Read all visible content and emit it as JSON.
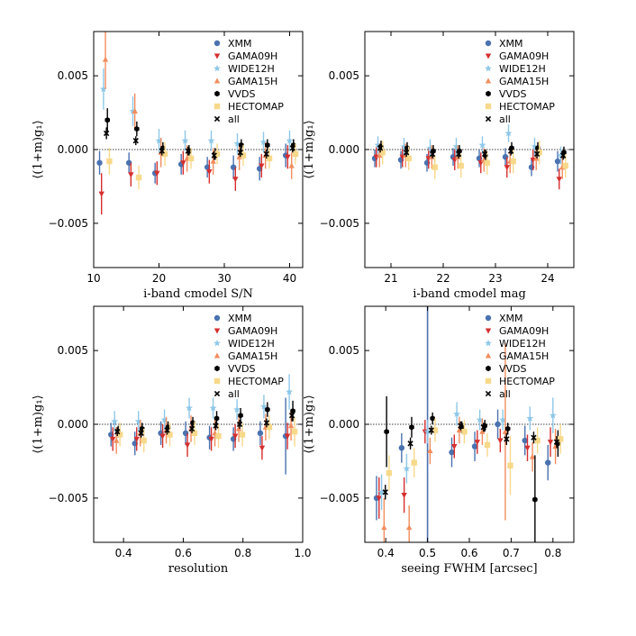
{
  "figure": {
    "title": "",
    "y_label_text": "⟨(1+m)g₁⟩"
  },
  "legend": {
    "entries": [
      {
        "key": "XMM",
        "label": "XMM",
        "color": "#4a72b0",
        "marker": "circle"
      },
      {
        "key": "GAMA09H",
        "label": "GAMA09H",
        "color": "#d62e2e",
        "marker": "triangle-down"
      },
      {
        "key": "WIDE12H",
        "label": "WIDE12H",
        "color": "#8ec7e8",
        "marker": "star"
      },
      {
        "key": "GAMA15H",
        "label": "GAMA15H",
        "color": "#f28d5e",
        "marker": "triangle-up"
      },
      {
        "key": "VVDS",
        "label": "VVDS",
        "color": "#000000",
        "marker": "hexagon"
      },
      {
        "key": "HECTOMAP",
        "label": "HECTOMAP",
        "color": "#f7d98b",
        "marker": "square"
      },
      {
        "key": "all",
        "label": "all",
        "color": "#000000",
        "marker": "x"
      }
    ]
  },
  "chart_data": [
    {
      "type": "scatter",
      "title": "",
      "xlabel": "i-band cmodel S/N",
      "ylabel": "⟨(1+m)g₁⟩",
      "xlim": [
        10,
        42
      ],
      "ylim": [
        -0.008,
        0.008
      ],
      "xticks": [
        10,
        20,
        30,
        40
      ],
      "xtick_labels": [
        "10",
        "20",
        "30",
        "40"
      ],
      "yticks": [
        -0.005,
        0.0,
        0.005
      ],
      "ytick_labels": [
        "−0.005",
        "0.000",
        "0.005"
      ],
      "zero_line": true,
      "x": [
        11.5,
        16,
        20,
        24,
        28,
        32,
        36,
        40
      ],
      "offsets": [
        -0.6,
        -0.3,
        0.0,
        0.3,
        0.6,
        0.9,
        0.45
      ],
      "series": [
        {
          "name": "XMM",
          "values": [
            -0.0009,
            -0.0009,
            -0.0016,
            -0.001,
            -0.0012,
            -0.0012,
            -0.0013,
            -0.0004
          ],
          "errors": [
            0.0008,
            0.0007,
            0.0007,
            0.0007,
            0.0007,
            0.0008,
            0.0008,
            0.0008
          ]
        },
        {
          "name": "GAMA09H",
          "values": [
            -0.003,
            -0.0017,
            -0.0016,
            -0.0009,
            -0.0015,
            -0.002,
            -0.0011,
            -0.0005
          ],
          "errors": [
            0.0014,
            0.0008,
            0.0008,
            0.0008,
            0.0008,
            0.0008,
            0.0008,
            0.0008
          ]
        },
        {
          "name": "WIDE12H",
          "values": [
            0.0041,
            0.0026,
            0.0006,
            0.0006,
            0.0006,
            0.0004,
            0.0005,
            0.0006
          ],
          "errors": [
            0.0014,
            0.001,
            0.0008,
            0.0007,
            0.0007,
            0.0007,
            0.0007,
            0.0007
          ]
        },
        {
          "name": "GAMA15H",
          "values": [
            0.0061,
            0.0026,
            -0.0002,
            -0.0006,
            -0.0008,
            -0.0005,
            -0.0004,
            -0.0011
          ],
          "errors": [
            0.002,
            0.0012,
            0.001,
            0.0009,
            0.0009,
            0.0009,
            0.0009,
            0.0009
          ]
        },
        {
          "name": "VVDS",
          "values": [
            0.002,
            0.0014,
            0.0001,
            -0.0001,
            -0.0003,
            0.0003,
            0.0003,
            0.0003
          ],
          "errors": [
            0.0008,
            0.0005,
            0.0004,
            0.0004,
            0.0004,
            0.0004,
            0.0004,
            0.0004
          ]
        },
        {
          "name": "HECTOMAP",
          "values": [
            -0.0008,
            -0.0019,
            -0.0003,
            -0.0006,
            -0.0003,
            -0.0004,
            -0.0006,
            -0.0003
          ],
          "errors": [
            0.0009,
            0.0008,
            0.0008,
            0.0007,
            0.0007,
            0.0007,
            0.0007,
            0.0007
          ]
        },
        {
          "name": "all",
          "values": [
            0.0011,
            0.0006,
            -0.0001,
            -0.0001,
            -0.0004,
            -0.0002,
            -0.0003,
            0.0001
          ],
          "errors": [
            0.0004,
            0.0003,
            0.0003,
            0.0003,
            0.0003,
            0.0003,
            0.0003,
            0.0003
          ]
        }
      ]
    },
    {
      "type": "scatter",
      "title": "",
      "xlabel": "i-band cmodel mag",
      "ylabel": "⟨(1+m)g₁⟩",
      "xlim": [
        20.5,
        24.5
      ],
      "ylim": [
        -0.008,
        0.008
      ],
      "xticks": [
        21,
        22,
        23,
        24
      ],
      "xtick_labels": [
        "21",
        "22",
        "23",
        "24"
      ],
      "yticks": [
        -0.005,
        0.0,
        0.005
      ],
      "ytick_labels": [
        "−0.005",
        "0.000",
        "0.005"
      ],
      "zero_line": true,
      "x": [
        20.75,
        21.25,
        21.75,
        22.25,
        22.75,
        23.25,
        23.75,
        24.25
      ],
      "offsets": [
        -0.06,
        -0.03,
        0.0,
        0.03,
        0.06,
        0.09,
        0.045
      ],
      "series": [
        {
          "name": "XMM",
          "values": [
            -0.0006,
            -0.0007,
            -0.0009,
            -0.0005,
            -0.0006,
            -0.0005,
            -0.0012,
            -0.0008
          ],
          "errors": [
            0.0006,
            0.0006,
            0.0006,
            0.0006,
            0.0006,
            0.0006,
            0.0006,
            0.0007
          ]
        },
        {
          "name": "GAMA09H",
          "values": [
            -0.0005,
            -0.0005,
            -0.0006,
            -0.0007,
            -0.0009,
            -0.0012,
            -0.0007,
            -0.002
          ],
          "errors": [
            0.0007,
            0.0007,
            0.0007,
            0.0007,
            0.0007,
            0.0007,
            0.0007,
            0.0007
          ]
        },
        {
          "name": "WIDE12H",
          "values": [
            0.0003,
            0.0002,
            0.0001,
            0.0002,
            0.0003,
            0.0011,
            0.0002,
            -0.0004
          ],
          "errors": [
            0.0006,
            0.0006,
            0.0006,
            0.0006,
            0.0006,
            0.0006,
            0.0006,
            0.0006
          ]
        },
        {
          "name": "GAMA15H",
          "values": [
            -0.0004,
            -0.0004,
            -0.0005,
            -0.0005,
            -0.0007,
            -0.0008,
            -0.0006,
            -0.0012
          ],
          "errors": [
            0.0008,
            0.0008,
            0.0008,
            0.0008,
            0.0008,
            0.0008,
            0.0008,
            0.0008
          ]
        },
        {
          "name": "VVDS",
          "values": [
            0.0002,
            0.0001,
            -0.0001,
            -0.0001,
            -0.0004,
            0.0001,
            0.0001,
            -0.0002
          ],
          "errors": [
            0.0004,
            0.0004,
            0.0004,
            0.0004,
            0.0004,
            0.0004,
            0.0004,
            0.0004
          ]
        },
        {
          "name": "HECTOMAP",
          "values": [
            -0.0002,
            -0.0006,
            -0.0012,
            -0.0011,
            -0.0009,
            -0.0008,
            -0.0002,
            -0.0011
          ],
          "errors": [
            0.0008,
            0.0008,
            0.0008,
            0.0008,
            0.0008,
            0.0008,
            0.0008,
            0.0008
          ]
        },
        {
          "name": "all",
          "values": [
            0.0001,
            -0.0002,
            -0.0003,
            -0.0003,
            -0.0003,
            -0.0001,
            -0.0003,
            -0.0004
          ],
          "errors": [
            0.0003,
            0.0003,
            0.0003,
            0.0003,
            0.0003,
            0.0003,
            0.0003,
            0.0003
          ]
        }
      ]
    },
    {
      "type": "scatter",
      "title": "",
      "xlabel": "resolution",
      "ylabel": "⟨(1+m)g₁⟩",
      "xlim": [
        0.3,
        1.0
      ],
      "ylim": [
        -0.008,
        0.008
      ],
      "xticks": [
        0.4,
        0.6,
        0.8,
        1.0
      ],
      "xtick_labels": [
        "0.4",
        "0.6",
        "0.8",
        "1.0"
      ],
      "yticks": [
        -0.005,
        0.0,
        0.005
      ],
      "ytick_labels": [
        "−0.005",
        "0.000",
        "0.005"
      ],
      "zero_line": true,
      "x": [
        0.37,
        0.45,
        0.537,
        0.62,
        0.7,
        0.78,
        0.87,
        0.955
      ],
      "offsets": [
        -0.012,
        -0.006,
        0.0,
        0.006,
        0.012,
        0.018,
        0.009
      ],
      "series": [
        {
          "name": "XMM",
          "values": [
            -0.0007,
            -0.0013,
            -0.0006,
            -0.0006,
            -0.0009,
            -0.001,
            -0.0006,
            -0.0008
          ],
          "errors": [
            0.0008,
            0.0008,
            0.0008,
            0.0008,
            0.0008,
            0.0008,
            0.0008,
            0.0026
          ]
        },
        {
          "name": "GAMA09H",
          "values": [
            -0.001,
            -0.001,
            -0.0008,
            -0.0014,
            -0.001,
            -0.0008,
            -0.0016,
            -0.0008
          ],
          "errors": [
            0.0008,
            0.0008,
            0.0008,
            0.0008,
            0.0008,
            0.0008,
            0.0008,
            0.0009
          ]
        },
        {
          "name": "WIDE12H",
          "values": [
            0.0002,
            0.0002,
            0.0003,
            0.0011,
            0.0011,
            0.001,
            0.0012,
            0.0022
          ],
          "errors": [
            0.0007,
            0.0007,
            0.0007,
            0.0007,
            0.0007,
            0.0007,
            0.0008,
            0.0012
          ]
        },
        {
          "name": "GAMA15H",
          "values": [
            -0.0011,
            -0.0006,
            -0.0004,
            -0.0003,
            -0.0006,
            -0.0003,
            -0.0002,
            -0.0001
          ],
          "errors": [
            0.0009,
            0.0009,
            0.0009,
            0.0009,
            0.0009,
            0.0009,
            0.0009,
            0.001
          ]
        },
        {
          "name": "VVDS",
          "values": [
            -0.0005,
            -0.0003,
            -0.0002,
            0.0001,
            0.0004,
            0.0006,
            0.001,
            0.0009
          ],
          "errors": [
            0.0004,
            0.0004,
            0.0004,
            0.0004,
            0.0005,
            0.0005,
            0.0005,
            0.0007
          ]
        },
        {
          "name": "HECTOMAP",
          "values": [
            -0.0007,
            -0.0011,
            -0.0007,
            -0.0006,
            -0.0008,
            -0.0007,
            -0.0002,
            -0.0005
          ],
          "errors": [
            0.0008,
            0.0008,
            0.0008,
            0.0008,
            0.0008,
            0.0008,
            0.0008,
            0.001
          ]
        },
        {
          "name": "all",
          "values": [
            -0.0005,
            -0.0006,
            -0.0004,
            -0.0003,
            -0.0001,
            0.0,
            0.0001,
            0.0006
          ],
          "errors": [
            0.0003,
            0.0003,
            0.0003,
            0.0003,
            0.0003,
            0.0003,
            0.0003,
            0.0004
          ]
        }
      ]
    },
    {
      "type": "scatter",
      "title": "",
      "xlabel": "seeing FWHM [arcsec]",
      "ylabel": "⟨(1+m)g₁⟩",
      "xlim": [
        0.35,
        0.85
      ],
      "ylim": [
        -0.008,
        0.008
      ],
      "xticks": [
        0.4,
        0.5,
        0.6,
        0.7,
        0.8
      ],
      "xtick_labels": [
        "0.4",
        "0.5",
        "0.6",
        "0.7",
        "0.8"
      ],
      "yticks": [
        -0.005,
        0.0,
        0.005
      ],
      "ytick_labels": [
        "−0.005",
        "0.000",
        "0.005"
      ],
      "zero_line": true,
      "x": [
        0.39,
        0.45,
        0.5,
        0.57,
        0.625,
        0.68,
        0.745,
        0.8
      ],
      "offsets": [
        -0.012,
        -0.006,
        0.0,
        0.006,
        0.012,
        0.018,
        0.009
      ],
      "series": [
        {
          "name": "XMM",
          "values": [
            -0.005,
            -0.0016,
            null,
            -0.0019,
            -0.0015,
            0.0,
            -0.0011,
            -0.0026
          ],
          "errors": [
            0.0015,
            0.001,
            null,
            0.001,
            0.001,
            0.001,
            0.001,
            0.0012
          ]
        },
        {
          "name": "GAMA09H",
          "values": [
            -0.005,
            -0.0048,
            -0.0005,
            -0.0015,
            -0.0012,
            -0.0011,
            -0.0016,
            -0.0012
          ],
          "errors": [
            0.0014,
            0.0012,
            0.0008,
            0.0008,
            0.0008,
            0.0008,
            0.0009,
            0.001
          ]
        },
        {
          "name": "WIDE12H",
          "values": [
            -0.0046,
            -0.003,
            -0.0005,
            0.0007,
            0.0003,
            0.0003,
            0.0004,
            0.0006
          ],
          "errors": [
            0.0012,
            0.001,
            0.0008,
            0.0008,
            0.0007,
            0.0007,
            0.0008,
            0.0012
          ]
        },
        {
          "name": "GAMA15H",
          "values": [
            -0.007,
            -0.007,
            -0.0018,
            -0.0004,
            -0.0005,
            -0.0005,
            -0.0022,
            -0.0015
          ],
          "errors": [
            0.002,
            0.0015,
            0.0009,
            0.0009,
            0.0009,
            0.006,
            0.001,
            0.0012
          ]
        },
        {
          "name": "VVDS",
          "values": [
            -0.0005,
            -0.0002,
            0.0004,
            -0.0002,
            -0.0001,
            -0.0003,
            -0.0051,
            -0.0013
          ],
          "errors": [
            0.0024,
            0.0007,
            0.0004,
            0.0004,
            0.0004,
            0.0004,
            0.003,
            0.0009
          ]
        },
        {
          "name": "HECTOMAP",
          "values": [
            -0.0033,
            -0.0026,
            -0.0004,
            -0.0005,
            -0.0014,
            -0.0028,
            -0.0011,
            -0.001
          ],
          "errors": [
            0.0012,
            0.001,
            0.0008,
            0.0008,
            0.0008,
            0.002,
            0.0009,
            0.001
          ]
        },
        {
          "name": "all",
          "values": [
            -0.0046,
            -0.0013,
            -0.0004,
            -0.0001,
            -0.0002,
            -0.001,
            -0.0009,
            -0.0012
          ],
          "errors": [
            0.0005,
            0.0004,
            0.0003,
            0.0003,
            0.0003,
            0.0004,
            0.0004,
            0.0004
          ]
        }
      ],
      "vertical_line": {
        "x": 0.5,
        "color": "#4a72b0",
        "series": "XMM"
      }
    }
  ]
}
